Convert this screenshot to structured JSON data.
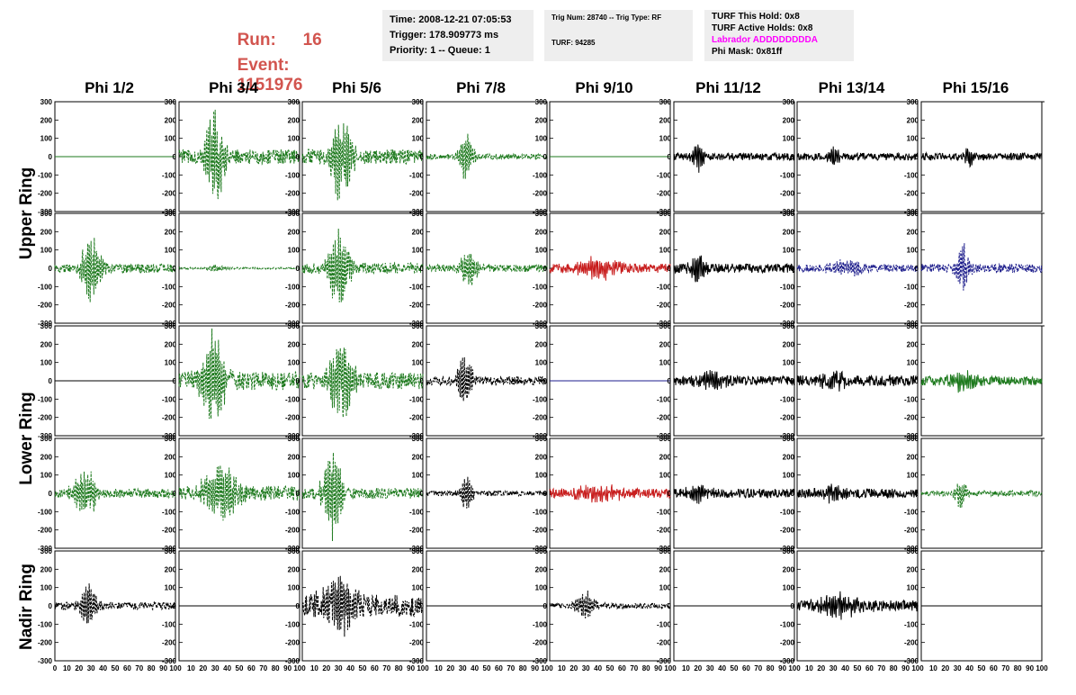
{
  "header": {
    "run_label": "Run:",
    "run_value": "16",
    "event_label": "Event:",
    "event_value": "1151976",
    "time_box": {
      "line1": "Time: 2008-12-21 07:05:53",
      "line2": "Trigger: 178.909773 ms",
      "line3": "Priority: 1 -- Queue: 1"
    },
    "trig_box": {
      "line1": "Trig Num: 28740 -- Trig Type: RF",
      "line2": "TURF: 94285"
    },
    "turf_box": {
      "line1": "TURF This Hold: 0x8",
      "line2": "TURF Active Holds: 0x8",
      "line3": "Labrador ADDDDDDDDA",
      "line4": "Phi Mask: 0x81ff"
    },
    "colors": {
      "run_event": "#d2554f",
      "labrador": "#ff00ff",
      "box_bg": "#eeeeee"
    }
  },
  "chart_data": {
    "type": "line",
    "columns": [
      "Phi 1/2",
      "Phi 3/4",
      "Phi 5/6",
      "Phi 7/8",
      "Phi 9/10",
      "Phi 11/12",
      "Phi 13/14",
      "Phi 15/16"
    ],
    "ring_labels": [
      {
        "label": "Upper Ring",
        "rows": [
          0,
          1
        ]
      },
      {
        "label": "Lower Ring",
        "rows": [
          2,
          3
        ]
      },
      {
        "label": "Nadir Ring",
        "rows": [
          4,
          4
        ]
      }
    ],
    "xlim": [
      0,
      100
    ],
    "ylim": [
      -300,
      300
    ],
    "y_ticks": [
      "300",
      "200",
      "100",
      "0",
      "-100",
      "-200",
      "-300"
    ],
    "x_ticks_first": [
      "0",
      "10",
      "20",
      "30",
      "40",
      "50",
      "60",
      "70",
      "80",
      "90",
      "100"
    ],
    "x_ticks_other": [
      "10",
      "20",
      "30",
      "40",
      "50",
      "60",
      "70",
      "80",
      "90",
      "100"
    ],
    "series_colors": {
      "green": "#1e7a1e",
      "black": "#000000",
      "red": "#c81e1e",
      "blue": "#1e1e8c"
    },
    "grid": false,
    "panels": [
      [
        {
          "color": "green",
          "dashed": false,
          "amp": 0,
          "center": 30,
          "width": 10,
          "noise": 0
        },
        {
          "color": "green",
          "dashed": true,
          "amp": 280,
          "center": 30,
          "width": 8,
          "noise": 40
        },
        {
          "color": "green",
          "dashed": true,
          "amp": 250,
          "center": 32,
          "width": 9,
          "noise": 40
        },
        {
          "color": "green",
          "dashed": true,
          "amp": 140,
          "center": 33,
          "width": 6,
          "noise": 15
        },
        {
          "color": "green",
          "dashed": false,
          "amp": 0,
          "center": 30,
          "width": 10,
          "noise": 0
        },
        {
          "color": "black",
          "dashed": false,
          "amp": 85,
          "center": 20,
          "width": 5,
          "noise": 20
        },
        {
          "color": "black",
          "dashed": false,
          "amp": 50,
          "center": 30,
          "width": 6,
          "noise": 20
        },
        {
          "color": "black",
          "dashed": false,
          "amp": 60,
          "center": 40,
          "width": 5,
          "noise": 20
        }
      ],
      [
        {
          "color": "green",
          "dashed": true,
          "amp": 190,
          "center": 30,
          "width": 8,
          "noise": 25
        },
        {
          "color": "green",
          "dashed": true,
          "amp": 20,
          "center": 30,
          "width": 8,
          "noise": 5
        },
        {
          "color": "green",
          "dashed": true,
          "amp": 240,
          "center": 30,
          "width": 9,
          "noise": 30
        },
        {
          "color": "green",
          "dashed": true,
          "amp": 110,
          "center": 35,
          "width": 7,
          "noise": 20
        },
        {
          "color": "red",
          "dashed": false,
          "amp": 70,
          "center": 40,
          "width": 15,
          "noise": 25
        },
        {
          "color": "black",
          "dashed": false,
          "amp": 85,
          "center": 20,
          "width": 6,
          "noise": 25
        },
        {
          "color": "blue",
          "dashed": true,
          "amp": 40,
          "center": 40,
          "width": 15,
          "noise": 20
        },
        {
          "color": "blue",
          "dashed": true,
          "amp": 130,
          "center": 35,
          "width": 6,
          "noise": 25
        }
      ],
      [
        {
          "color": "black",
          "dashed": false,
          "amp": 0,
          "center": 30,
          "width": 10,
          "noise": 0
        },
        {
          "color": "green",
          "dashed": true,
          "amp": 290,
          "center": 28,
          "width": 10,
          "noise": 50
        },
        {
          "color": "green",
          "dashed": true,
          "amp": 270,
          "center": 33,
          "width": 10,
          "noise": 45
        },
        {
          "color": "black",
          "dashed": true,
          "amp": 160,
          "center": 32,
          "width": 6,
          "noise": 25
        },
        {
          "color": "blue",
          "dashed": false,
          "amp": 0,
          "center": 30,
          "width": 10,
          "noise": 0
        },
        {
          "color": "black",
          "dashed": false,
          "amp": 50,
          "center": 30,
          "width": 12,
          "noise": 25
        },
        {
          "color": "black",
          "dashed": false,
          "amp": 50,
          "center": 30,
          "width": 12,
          "noise": 30
        },
        {
          "color": "green",
          "dashed": false,
          "amp": 55,
          "center": 35,
          "width": 12,
          "noise": 25
        }
      ],
      [
        {
          "color": "green",
          "dashed": true,
          "amp": 140,
          "center": 25,
          "width": 10,
          "noise": 25
        },
        {
          "color": "green",
          "dashed": true,
          "amp": 170,
          "center": 35,
          "width": 14,
          "noise": 40
        },
        {
          "color": "green",
          "dashed": true,
          "amp": 260,
          "center": 25,
          "width": 8,
          "noise": 30
        },
        {
          "color": "black",
          "dashed": true,
          "amp": 120,
          "center": 33,
          "width": 5,
          "noise": 15
        },
        {
          "color": "red",
          "dashed": false,
          "amp": 40,
          "center": 40,
          "width": 20,
          "noise": 25
        },
        {
          "color": "black",
          "dashed": false,
          "amp": 50,
          "center": 20,
          "width": 10,
          "noise": 25
        },
        {
          "color": "black",
          "dashed": false,
          "amp": 45,
          "center": 30,
          "width": 10,
          "noise": 25
        },
        {
          "color": "green",
          "dashed": true,
          "amp": 90,
          "center": 33,
          "width": 5,
          "noise": 15
        }
      ],
      [
        {
          "color": "black",
          "dashed": true,
          "amp": 120,
          "center": 28,
          "width": 7,
          "noise": 20
        },
        {
          "color": "black",
          "dashed": false,
          "amp": 0,
          "center": 30,
          "width": 10,
          "noise": 0
        },
        {
          "color": "black",
          "dashed": true,
          "amp": 160,
          "center": 30,
          "width": 14,
          "noise": 60
        },
        {
          "color": "black",
          "dashed": false,
          "amp": 0,
          "center": 30,
          "width": 10,
          "noise": 0
        },
        {
          "color": "black",
          "dashed": true,
          "amp": 80,
          "center": 30,
          "width": 8,
          "noise": 15
        },
        {
          "color": "black",
          "dashed": false,
          "amp": 0,
          "center": 30,
          "width": 10,
          "noise": 0
        },
        {
          "color": "black",
          "dashed": false,
          "amp": 60,
          "center": 35,
          "width": 18,
          "noise": 30
        },
        {
          "color": "black",
          "dashed": false,
          "amp": 0,
          "center": 30,
          "width": 10,
          "noise": 0
        }
      ]
    ]
  }
}
